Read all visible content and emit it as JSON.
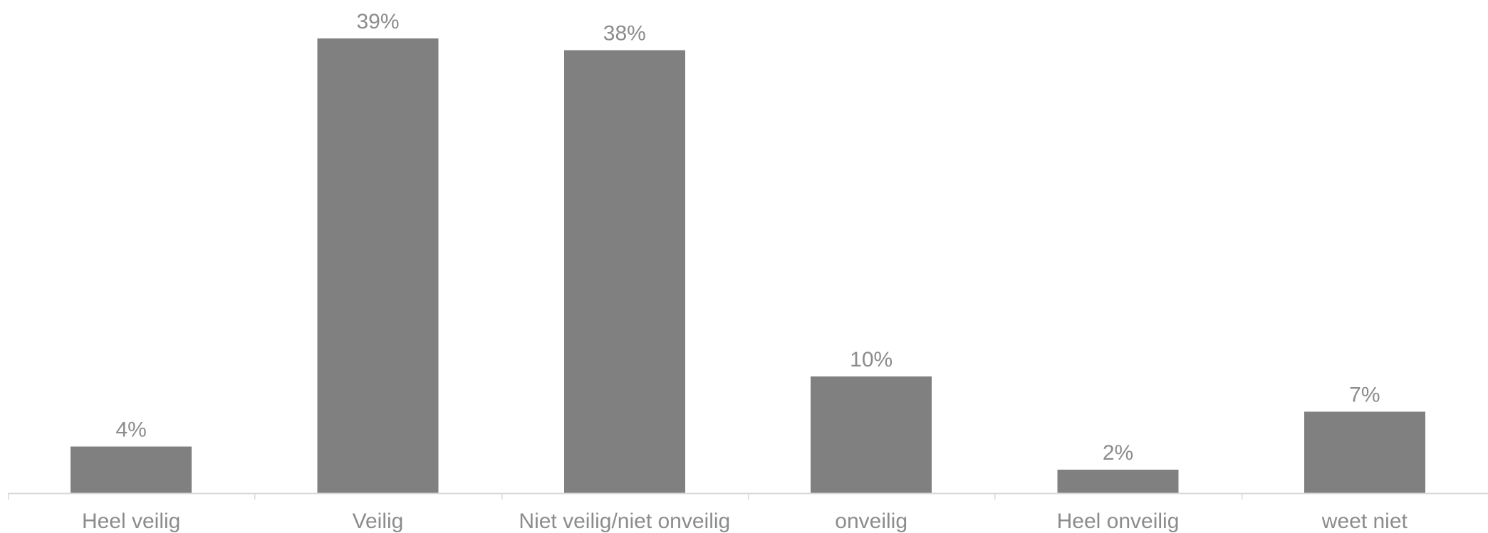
{
  "chart_data": {
    "type": "bar",
    "title": "",
    "xlabel": "",
    "ylabel": "",
    "categories": [
      "Heel veilig",
      "Veilig",
      "Niet veilig/niet onveilig",
      "onveilig",
      "Heel onveilig",
      "weet niet"
    ],
    "values": [
      4,
      39,
      38,
      10,
      2,
      7
    ],
    "data_labels": [
      "4%",
      "39%",
      "38%",
      "10%",
      "2%",
      "7%"
    ],
    "unit": "%",
    "ylim": [
      0,
      39
    ],
    "grid": false,
    "legend": "none",
    "colors": {
      "bar": "#808080",
      "label_text": "#8c8c8c",
      "axis": "#d9d9d9",
      "background": "#ffffff"
    }
  }
}
